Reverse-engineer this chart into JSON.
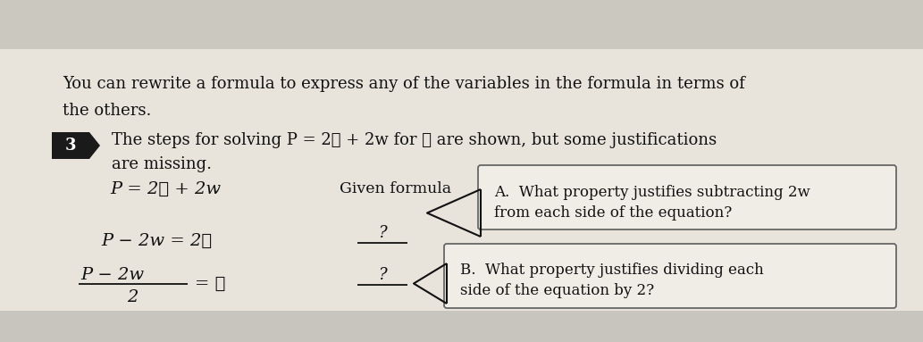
{
  "bg_color": "#e8e4dc",
  "top_stripe_color": "#cbc8c0",
  "bottom_stripe_color": "#c8c5be",
  "text_color": "#111111",
  "intro_text_line1": "You can rewrite a formula to express any of the variables in the formula in terms of",
  "intro_text_line2": "the others.",
  "problem_num": "3",
  "problem_num_bg": "#1a1a1a",
  "problem_text_line1": "The steps for solving P = 2ℓ + 2w for ℓ are shown, but some justifications",
  "problem_text_line2": "are missing.",
  "eq1": "P = 2ℓ + 2w",
  "eq1_label": "Given formula",
  "eq2": "P − 2w = 2ℓ",
  "eq2_label": "?",
  "eq3_num": "P − 2w",
  "eq3_denom": "2",
  "eq3_rhs": "= ℓ",
  "eq3_label": "?",
  "box_a_line1": "A.  What property justifies subtracting 2w",
  "box_a_line2": "from each side of the equation?",
  "box_b_line1": "B.  What property justifies dividing each",
  "box_b_line2": "side of the equation by 2?",
  "box_color": "#f0ede6",
  "box_edge_color": "#666666"
}
